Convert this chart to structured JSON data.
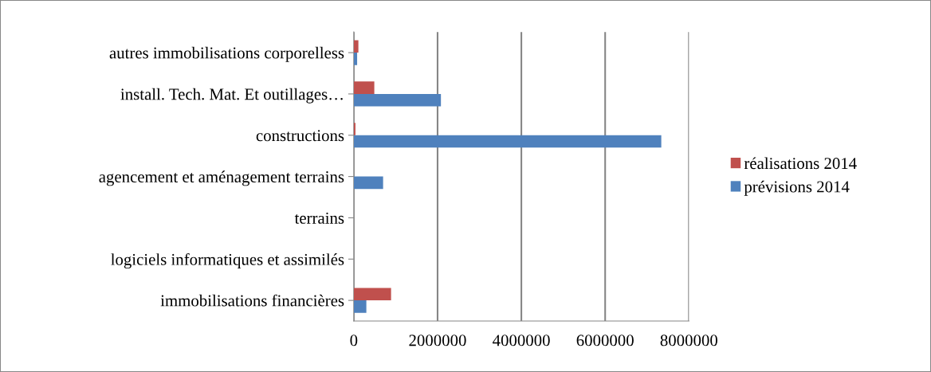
{
  "chart_data": {
    "type": "bar",
    "orientation": "horizontal",
    "categories": [
      "autres immobilisations corporelless",
      "install. Tech. Mat. Et outillages…",
      "constructions",
      "agencement et aménagement terrains",
      "terrains",
      "logiciels informatiques et assimilés",
      "immobilisations financières"
    ],
    "series": [
      {
        "name": "prévisions 2014",
        "color": "#4f81bd",
        "values": [
          80000,
          2080000,
          7340000,
          700000,
          0,
          null,
          300000
        ]
      },
      {
        "name": "réalisations 2014",
        "color": "#c0504d",
        "values": [
          110000,
          490000,
          40000,
          null,
          0,
          0,
          890000
        ]
      }
    ],
    "xlim": [
      0,
      8000000
    ],
    "xticks": [
      0,
      2000000,
      4000000,
      6000000,
      8000000
    ],
    "grid": "x",
    "legend": "right"
  }
}
